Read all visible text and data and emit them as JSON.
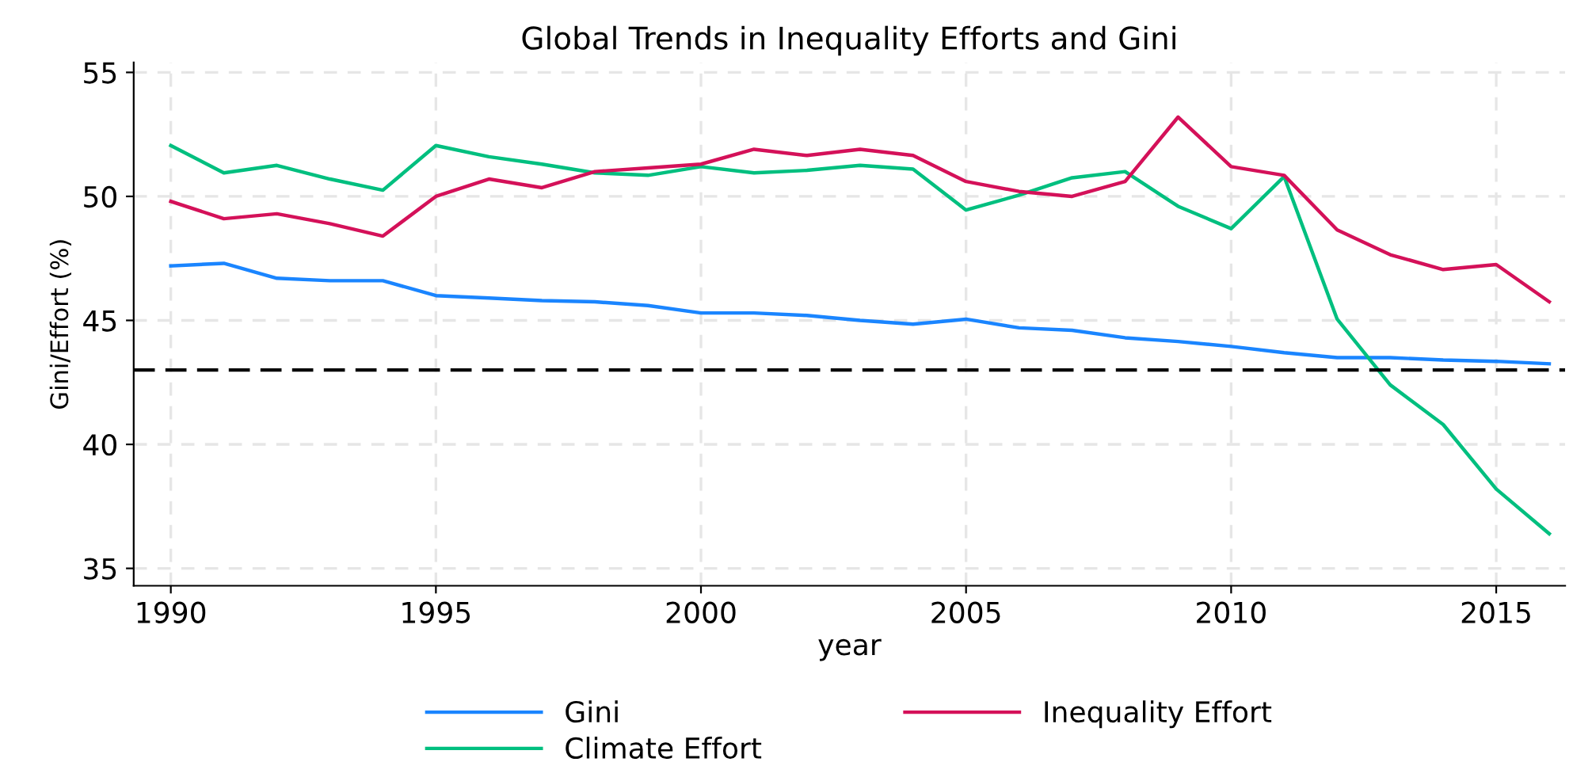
{
  "chart_data": {
    "type": "line",
    "title": "Global Trends in Inequality Efforts and Gini",
    "xlabel": "year",
    "ylabel": "Gini/Effort (%)",
    "x": [
      1990,
      1991,
      1992,
      1993,
      1994,
      1995,
      1996,
      1997,
      1998,
      1999,
      2000,
      2001,
      2002,
      2003,
      2004,
      2005,
      2006,
      2007,
      2008,
      2009,
      2010,
      2011,
      2012,
      2013,
      2014,
      2015,
      2016
    ],
    "series": [
      {
        "name": "Gini",
        "color": "#1a85ff",
        "values": [
          47.2,
          47.3,
          46.7,
          46.6,
          46.6,
          46.0,
          45.9,
          45.8,
          45.75,
          45.6,
          45.3,
          45.3,
          45.2,
          45.0,
          44.85,
          45.05,
          44.7,
          44.6,
          44.3,
          44.15,
          43.95,
          43.7,
          43.5,
          43.5,
          43.4,
          43.35,
          43.25
        ]
      },
      {
        "name": "Climate Effort",
        "color": "#00bf7f",
        "values": [
          52.05,
          50.95,
          51.25,
          50.7,
          50.25,
          52.05,
          51.6,
          51.3,
          50.95,
          50.85,
          51.2,
          50.95,
          51.05,
          51.25,
          51.1,
          49.45,
          50.05,
          50.75,
          51.0,
          49.6,
          48.7,
          50.8,
          45.05,
          42.4,
          40.8,
          38.2,
          36.4
        ]
      },
      {
        "name": "Inequality Effort",
        "color": "#d41159",
        "values": [
          49.8,
          49.1,
          49.3,
          48.9,
          48.4,
          50.0,
          50.7,
          50.35,
          51.0,
          51.15,
          51.3,
          51.9,
          51.65,
          51.9,
          51.65,
          50.6,
          50.2,
          50.0,
          50.6,
          53.2,
          51.2,
          50.85,
          48.65,
          47.65,
          47.05,
          47.25,
          45.75
        ]
      }
    ],
    "xlim": [
      1989.3,
      2016.3
    ],
    "xticks": [
      1990,
      1995,
      2000,
      2005,
      2010,
      2015
    ],
    "ylim": [
      34.3,
      55.4
    ],
    "yticks": [
      35,
      40,
      45,
      50,
      55
    ],
    "ref_lines": [
      {
        "axis": "y",
        "value": 43,
        "color": "#000000",
        "line_style": "dashed"
      }
    ],
    "grid": true,
    "legend": "bottom",
    "marker": "none",
    "line_style": "solid"
  }
}
